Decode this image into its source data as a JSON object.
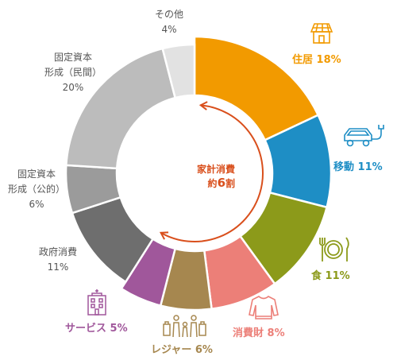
{
  "chart_data": {
    "type": "pie",
    "style": "donut",
    "unit": "%",
    "slices": [
      {
        "label": "住居",
        "value": 18,
        "color": "#f29a00",
        "text": "住居 18%"
      },
      {
        "label": "移動",
        "value": 11,
        "color": "#1e8ec5",
        "text": "移動 11%"
      },
      {
        "label": "食",
        "value": 11,
        "color": "#8c9a1a",
        "text": "食 11%"
      },
      {
        "label": "消費財",
        "value": 8,
        "color": "#ec7f78",
        "text": "消費財 8%"
      },
      {
        "label": "レジャー",
        "value": 6,
        "color": "#a6874f",
        "text": "レジャー 6%"
      },
      {
        "label": "サービス",
        "value": 5,
        "color": "#a0579b",
        "text": "サービス 5%"
      },
      {
        "label": "政府消費",
        "value": 11,
        "color": "#6e6e6e",
        "line1": "政府消費",
        "line2": "11%"
      },
      {
        "label": "固定資本形成（公的）",
        "value": 6,
        "color": "#9b9b9b",
        "line1": "固定資本",
        "line2": "形成（公的）",
        "line3": "6%"
      },
      {
        "label": "固定資本形成（民間）",
        "value": 20,
        "color": "#bcbcbc",
        "line1": "固定資本",
        "line2": "形成（民間）",
        "line3": "20%"
      },
      {
        "label": "その他",
        "value": 4,
        "color": "#e2e2e2",
        "line1": "その他",
        "line2": "4%"
      }
    ],
    "center_annotation": {
      "line1": "家計消費",
      "line2_prefix": "約",
      "line2_number": "6",
      "line2_suffix": "割",
      "color": "#d94f1c"
    }
  }
}
